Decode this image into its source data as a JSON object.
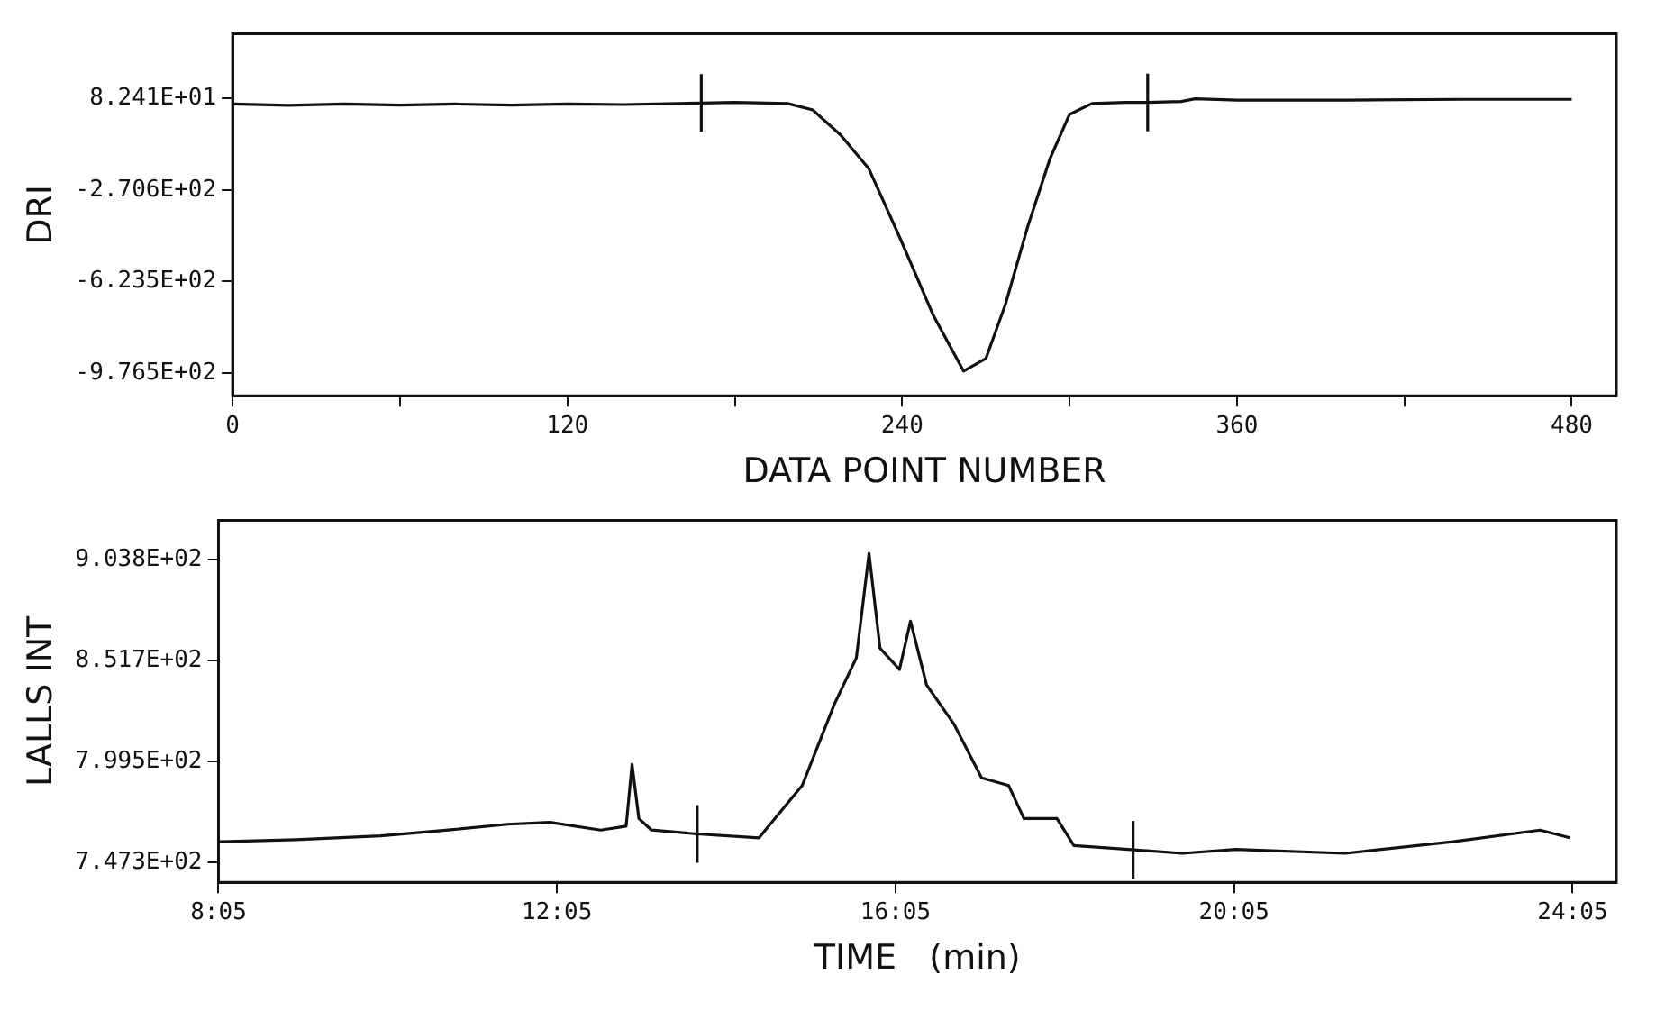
{
  "chart_data": [
    {
      "type": "line",
      "xlabel": "DATA POINT NUMBER",
      "ylabel": "DRI",
      "x": [
        0,
        20,
        40,
        60,
        80,
        100,
        120,
        140,
        160,
        168,
        180,
        199,
        208,
        218,
        228,
        239,
        251,
        262,
        270,
        277,
        285,
        293,
        300,
        308,
        320,
        328,
        340,
        345,
        360,
        400,
        440,
        480
      ],
      "values": [
        60,
        55,
        60,
        56,
        60,
        56,
        60,
        58,
        62,
        64,
        66,
        62,
        37,
        -60,
        -188,
        -450,
        -750,
        -968,
        -920,
        -712,
        -412,
        -150,
        20,
        62,
        66,
        66,
        70,
        80,
        75,
        75,
        78,
        78
      ],
      "color": "#111111",
      "marker": "none",
      "line_style": "solid",
      "grid": false,
      "legend": false,
      "xlim": [
        0,
        496
      ],
      "xticks": [
        0,
        {
          "value": 60,
          "label": null
        },
        120,
        {
          "value": 180,
          "label": null
        },
        240,
        {
          "value": 300,
          "label": null
        },
        360,
        {
          "value": 420,
          "label": null
        },
        480
      ],
      "ylim": [
        -1063,
        330
      ],
      "yticks": [
        {
          "value": 82.41,
          "label": "8.241E+01"
        },
        {
          "value": -270.6,
          "label": "-2.706E+02"
        },
        {
          "value": -623.5,
          "label": "-6.235E+02"
        },
        {
          "value": -976.5,
          "label": "-9.765E+02"
        }
      ],
      "ref_lines": [
        {
          "axis": "x",
          "value": 168,
          "label": null
        },
        {
          "axis": "x",
          "value": 328,
          "label": null
        }
      ]
    },
    {
      "type": "line",
      "xlabel": "TIME   (min)",
      "ylabel": "LALLS INT",
      "x": [
        8.09,
        9,
        10,
        10.8,
        11.5,
        12,
        12.6,
        12.9,
        12.97,
        13.05,
        13.2,
        13.74,
        14.47,
        14.98,
        15.36,
        15.62,
        15.77,
        15.9,
        16.13,
        16.26,
        16.45,
        16.77,
        17.1,
        17.42,
        17.6,
        17.99,
        18.19,
        18.83,
        19.47,
        20.1,
        21.4,
        22.67,
        23.7,
        24.05
      ],
      "values": [
        758,
        759,
        761,
        764,
        767,
        768,
        764,
        766,
        798,
        770,
        764,
        762,
        760,
        787,
        829,
        853,
        907,
        858,
        847,
        872,
        839,
        819,
        791,
        787,
        770,
        770,
        756,
        754,
        752,
        754,
        752,
        758,
        764,
        760
      ],
      "color": "#111111",
      "marker": "none",
      "line_style": "solid",
      "grid": false,
      "legend": false,
      "xlim": [
        8.0833,
        24.6
      ],
      "xticks": [
        {
          "value": 8.0833,
          "label": "8:05"
        },
        {
          "value": 12.0833,
          "label": "12:05"
        },
        {
          "value": 16.0833,
          "label": "16:05"
        },
        {
          "value": 20.0833,
          "label": "20:05"
        },
        {
          "value": 24.0833,
          "label": "24:05"
        }
      ],
      "ylim": [
        737,
        924
      ],
      "yticks": [
        {
          "value": 903.8,
          "label": "9.038E+02"
        },
        {
          "value": 851.7,
          "label": "8.517E+02"
        },
        {
          "value": 799.5,
          "label": "7.995E+02"
        },
        {
          "value": 747.3,
          "label": "7.473E+02"
        }
      ],
      "ref_lines": [
        {
          "axis": "x",
          "value": 13.74,
          "label": null
        },
        {
          "axis": "x",
          "value": 18.89,
          "label": null
        }
      ]
    }
  ]
}
